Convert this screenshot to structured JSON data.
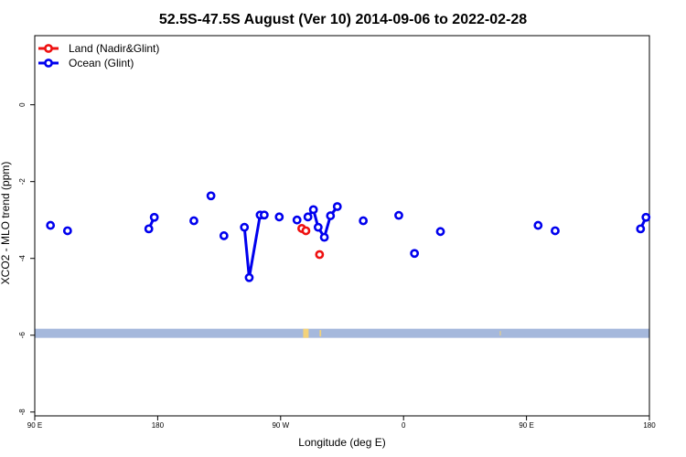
{
  "chart_data": {
    "type": "line",
    "title": "52.5S-47.5S August (Ver 10)   2014-09-06 to 2022-02-28",
    "xlabel": "Longitude (deg E)",
    "ylabel": "XCO2 - MLO trend (ppm)",
    "xlim": [
      90,
      540
    ],
    "ylim": [
      -8.1,
      1.8
    ],
    "x_ticks": [
      {
        "value": 90,
        "label": "90 E"
      },
      {
        "value": 180,
        "label": "180"
      },
      {
        "value": 270,
        "label": "90 W"
      },
      {
        "value": 360,
        "label": "0"
      },
      {
        "value": 450,
        "label": "90 E"
      },
      {
        "value": 540,
        "label": "180"
      }
    ],
    "y_ticks": [
      0,
      -2,
      -4,
      -6,
      -8
    ],
    "legend": {
      "position": "top-left",
      "entries": [
        {
          "label": "Land (Nadir&Glint)",
          "color": "#ee1111"
        },
        {
          "label": "Ocean (Glint)",
          "color": "#0000ee"
        }
      ]
    },
    "land_band": {
      "y": -5.95,
      "color": "#a5b8dc",
      "land_color": "#f3d27a"
    },
    "series": [
      {
        "name": "Land (Nadir&Glint)",
        "color": "#ee1111",
        "segments": [
          [
            {
              "x": 285.5,
              "y": -3.22
            },
            {
              "x": 288.5,
              "y": -3.28
            }
          ],
          [
            {
              "x": 298.5,
              "y": -3.9
            }
          ]
        ]
      },
      {
        "name": "Ocean (Glint)",
        "color": "#0000ee",
        "segments": [
          [
            {
              "x": 101.5,
              "y": -3.14
            }
          ],
          [
            {
              "x": 114,
              "y": -3.28
            }
          ],
          [
            {
              "x": 173.5,
              "y": -3.23
            },
            {
              "x": 177.5,
              "y": -2.93
            }
          ],
          [
            {
              "x": 206.5,
              "y": -3.02
            }
          ],
          [
            {
              "x": 219,
              "y": -2.37
            }
          ],
          [
            {
              "x": 228.5,
              "y": -3.41
            }
          ],
          [
            {
              "x": 243.5,
              "y": -3.19
            },
            {
              "x": 247,
              "y": -4.5
            },
            {
              "x": 255,
              "y": -2.87
            },
            {
              "x": 258,
              "y": -2.87
            }
          ],
          [
            {
              "x": 269,
              "y": -2.92
            }
          ],
          [
            {
              "x": 282,
              "y": -3.0
            }
          ],
          [
            {
              "x": 290,
              "y": -2.92
            },
            {
              "x": 294,
              "y": -2.73
            },
            {
              "x": 297.5,
              "y": -3.19
            },
            {
              "x": 302,
              "y": -3.45
            },
            {
              "x": 306.5,
              "y": -2.89
            },
            {
              "x": 311.5,
              "y": -2.65
            }
          ],
          [
            {
              "x": 330.5,
              "y": -3.02
            }
          ],
          [
            {
              "x": 356.5,
              "y": -2.88
            }
          ],
          [
            {
              "x": 368,
              "y": -3.87
            }
          ],
          [
            {
              "x": 387,
              "y": -3.3
            }
          ],
          [
            {
              "x": 458.5,
              "y": -3.14
            }
          ],
          [
            {
              "x": 471,
              "y": -3.28
            }
          ],
          [
            {
              "x": 533.5,
              "y": -3.23
            },
            {
              "x": 537.5,
              "y": -2.93
            }
          ]
        ]
      }
    ]
  }
}
